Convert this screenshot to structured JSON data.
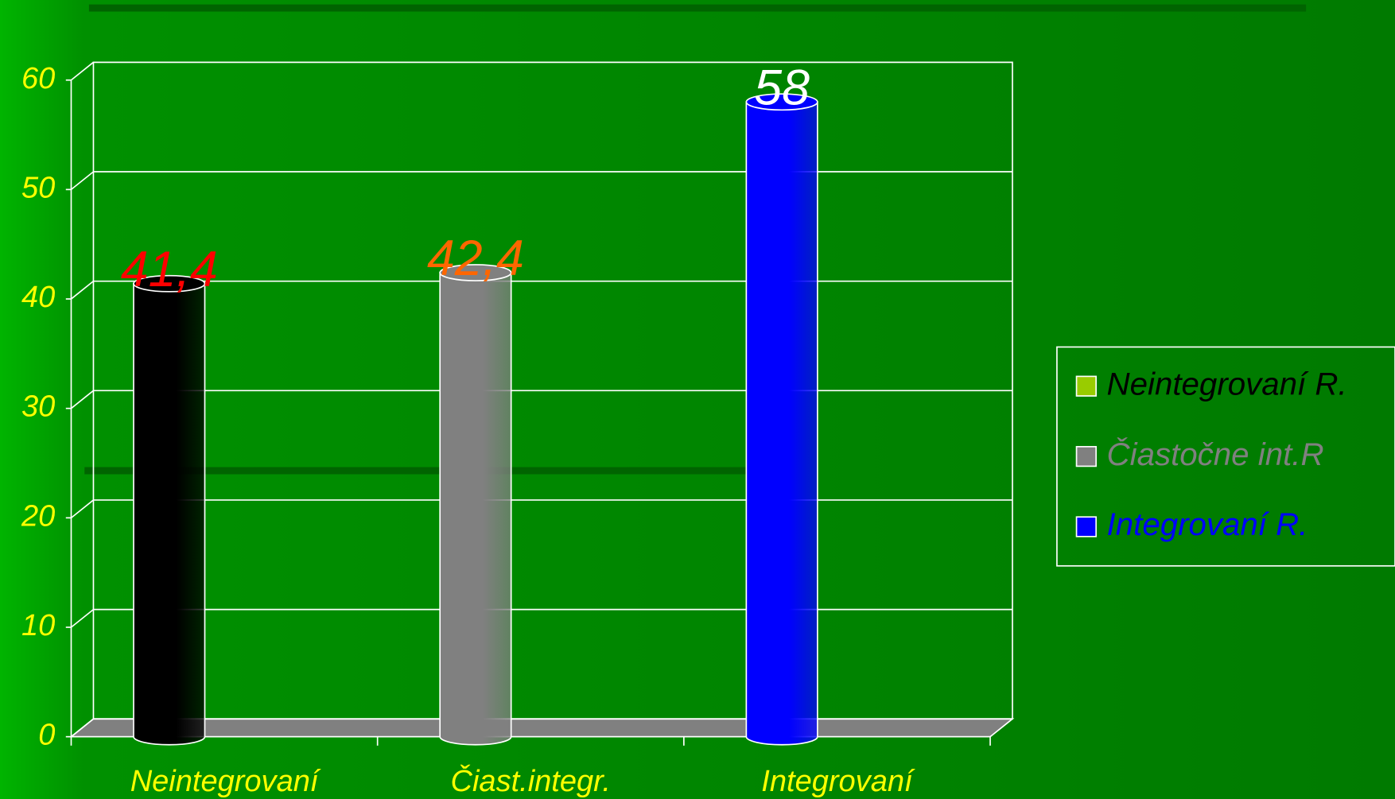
{
  "chart_data": {
    "type": "bar3d",
    "categories": [
      "Neintegrovaní",
      "Čiast.integr.",
      "Integrovaní"
    ],
    "series": [
      {
        "name": "Neintegrovaní R.",
        "color": "#000000",
        "swatch_color": "#99cc00",
        "label_color": "#ff0000",
        "values": [
          41.4,
          null,
          null
        ],
        "value_labels": [
          "41,4",
          null,
          null
        ]
      },
      {
        "name": "Čiastočne int.R",
        "color": "#808080",
        "swatch_color": "#808080",
        "label_color": "#ff6600",
        "values": [
          null,
          42.4,
          null
        ],
        "value_labels": [
          null,
          "42,4",
          null
        ]
      },
      {
        "name": "Integrovaní R.",
        "color": "#0000ff",
        "swatch_color": "#0000ff",
        "label_color": "#ffffff",
        "values": [
          null,
          null,
          58
        ],
        "value_labels": [
          null,
          null,
          "58"
        ]
      }
    ],
    "ylim": [
      0,
      60
    ],
    "yticks": [
      0,
      10,
      20,
      30,
      40,
      50,
      60
    ],
    "grid": true,
    "legend": "right"
  }
}
